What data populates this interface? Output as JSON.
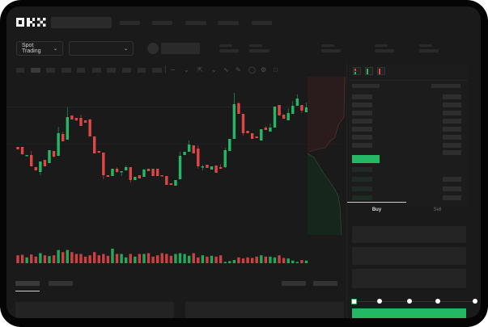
{
  "brand": {
    "logo": "OKX"
  },
  "toolbar": {
    "market_select_label": "Spot Trading"
  },
  "order_form": {
    "tabs": [
      {
        "label": "Buy",
        "active": true
      },
      {
        "label": "Sell",
        "active": false
      }
    ],
    "slider_level_percent": 0
  },
  "colors": {
    "up": "#25b864",
    "down": "#e04646",
    "background": "#1a1a1a",
    "frame": "#050505"
  },
  "icons": [
    "chevron-down-icon",
    "indicator-icon",
    "draw-line-icon",
    "ruler-icon",
    "camera-icon",
    "settings-icon",
    "fullscreen-icon",
    "orderbook-both-icon",
    "orderbook-bids-icon",
    "orderbook-asks-icon"
  ],
  "chart_data": {
    "type": "candlestick",
    "candles_ohlc": [
      [
        68,
        68,
        65,
        65
      ],
      [
        68,
        68,
        58,
        59
      ],
      [
        57,
        58,
        57,
        58
      ],
      [
        58,
        63,
        44,
        44
      ],
      [
        43,
        43,
        39,
        39
      ],
      [
        37,
        50,
        33,
        50
      ],
      [
        52,
        52,
        44,
        44
      ],
      [
        48,
        64,
        48,
        64
      ],
      [
        63,
        63,
        55,
        56
      ],
      [
        57,
        93,
        57,
        85
      ],
      [
        84,
        87,
        75,
        75
      ],
      [
        77,
        117,
        77,
        105
      ],
      [
        107,
        107,
        102,
        102
      ],
      [
        104,
        104,
        100,
        101
      ],
      [
        104,
        108,
        94,
        94
      ],
      [
        101,
        101,
        98,
        98
      ],
      [
        102,
        103,
        81,
        81
      ],
      [
        81,
        81,
        60,
        60
      ],
      [
        63,
        63,
        60,
        61
      ],
      [
        61,
        61,
        28,
        33
      ],
      [
        33,
        33,
        31,
        31
      ],
      [
        32,
        41,
        32,
        41
      ],
      [
        41,
        43,
        36,
        37
      ],
      [
        37,
        38,
        32,
        38
      ],
      [
        39,
        45,
        39,
        43
      ],
      [
        43,
        43,
        24,
        27
      ],
      [
        27,
        31,
        27,
        31
      ],
      [
        33,
        33,
        29,
        29
      ],
      [
        31,
        41,
        31,
        40
      ],
      [
        41,
        41,
        38,
        38
      ],
      [
        41,
        41,
        32,
        32
      ],
      [
        41,
        41,
        32,
        32
      ],
      [
        33,
        33,
        32,
        32
      ],
      [
        32,
        32,
        21,
        21
      ],
      [
        23,
        23,
        21,
        21
      ],
      [
        20,
        27,
        20,
        27
      ],
      [
        28,
        62,
        28,
        57
      ],
      [
        58,
        62,
        58,
        62
      ],
      [
        62,
        76,
        62,
        71
      ],
      [
        70,
        70,
        60,
        60
      ],
      [
        66,
        70,
        41,
        44
      ],
      [
        43,
        46,
        39,
        44
      ],
      [
        46,
        46,
        42,
        42
      ],
      [
        40,
        44,
        40,
        44
      ],
      [
        45,
        45,
        36,
        36
      ],
      [
        43,
        47,
        41,
        41
      ],
      [
        43,
        67,
        42,
        64
      ],
      [
        63,
        78,
        63,
        78
      ],
      [
        78,
        135,
        78,
        121
      ],
      [
        122,
        124,
        109,
        109
      ],
      [
        109,
        109,
        82,
        85
      ],
      [
        88,
        88,
        85,
        85
      ],
      [
        85,
        85,
        78,
        78
      ],
      [
        81,
        81,
        79,
        79
      ],
      [
        76,
        90,
        76,
        90
      ],
      [
        92,
        94,
        89,
        89
      ],
      [
        87,
        97,
        87,
        92
      ],
      [
        92,
        118,
        92,
        118
      ],
      [
        120,
        120,
        107,
        107
      ],
      [
        108,
        108,
        103,
        103
      ],
      [
        101,
        116,
        101,
        110
      ],
      [
        109,
        125,
        109,
        119
      ],
      [
        119,
        133,
        119,
        128
      ],
      [
        120,
        120,
        110,
        113
      ],
      [
        111,
        123,
        111,
        117
      ]
    ],
    "volume": [
      30,
      32,
      22,
      33,
      25,
      38,
      30,
      27,
      30,
      50,
      42,
      50,
      42,
      35,
      35,
      25,
      30,
      42,
      30,
      35,
      28,
      55,
      35,
      35,
      22,
      35,
      25,
      35,
      35,
      38,
      25,
      30,
      38,
      35,
      28,
      35,
      38,
      35,
      28,
      38,
      22,
      30,
      25,
      28,
      25,
      30,
      5,
      8,
      12,
      22,
      18,
      22,
      20,
      25,
      30,
      25,
      25,
      22,
      30,
      20,
      18,
      10,
      5,
      12,
      10
    ],
    "axes_visible": false,
    "grid": true
  }
}
